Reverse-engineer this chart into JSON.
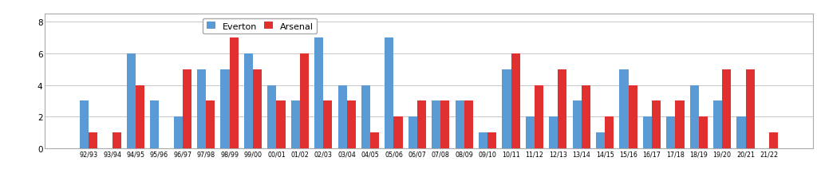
{
  "seasons": [
    "92/93",
    "93/94",
    "94/95",
    "95/96",
    "96/97",
    "97/98",
    "98/99",
    "99/00",
    "00/01",
    "01/02",
    "02/03",
    "03/04",
    "04/05",
    "05/06",
    "06/07",
    "07/08",
    "08/09",
    "09/10",
    "10/11",
    "11/12",
    "12/13",
    "13/14",
    "14/15",
    "15/16",
    "16/17",
    "17/18",
    "18/19",
    "19/20",
    "20/21",
    "21/22"
  ],
  "everton": [
    3,
    0,
    6,
    3,
    2,
    5,
    5,
    6,
    4,
    3,
    7,
    4,
    4,
    7,
    2,
    3,
    3,
    1,
    5,
    2,
    2,
    3,
    1,
    5,
    2,
    2,
    4,
    3,
    2,
    0
  ],
  "arsenal": [
    1,
    1,
    4,
    0,
    5,
    3,
    7,
    5,
    3,
    6,
    3,
    3,
    1,
    2,
    3,
    3,
    3,
    1,
    6,
    4,
    5,
    4,
    2,
    4,
    3,
    3,
    2,
    5,
    5,
    1
  ],
  "everton_color": "#5B9BD5",
  "arsenal_color": "#E03030",
  "background_color": "#FFFFFF",
  "grid_color": "#C8C8C8",
  "ylim": [
    0,
    8.5
  ],
  "yticks": [
    0,
    2,
    4,
    6,
    8
  ],
  "bar_width": 0.38
}
